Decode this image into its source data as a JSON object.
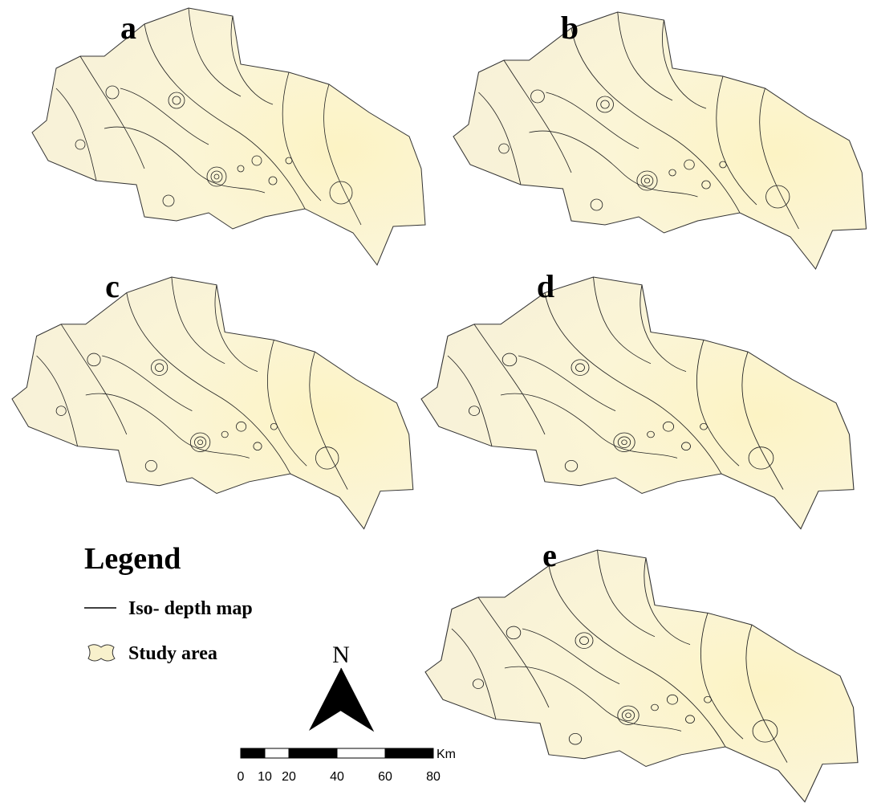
{
  "panels": [
    {
      "label": "a"
    },
    {
      "label": "b"
    },
    {
      "label": "c"
    },
    {
      "label": "d"
    },
    {
      "label": "e"
    }
  ],
  "legend": {
    "title": "Legend",
    "items": [
      {
        "label": "Iso- depth map"
      },
      {
        "label": "Study area"
      }
    ]
  },
  "north_arrow": {
    "label": "N"
  },
  "scale_bar": {
    "ticks": [
      0,
      10,
      20,
      40,
      60,
      80
    ],
    "unit": "Km"
  }
}
